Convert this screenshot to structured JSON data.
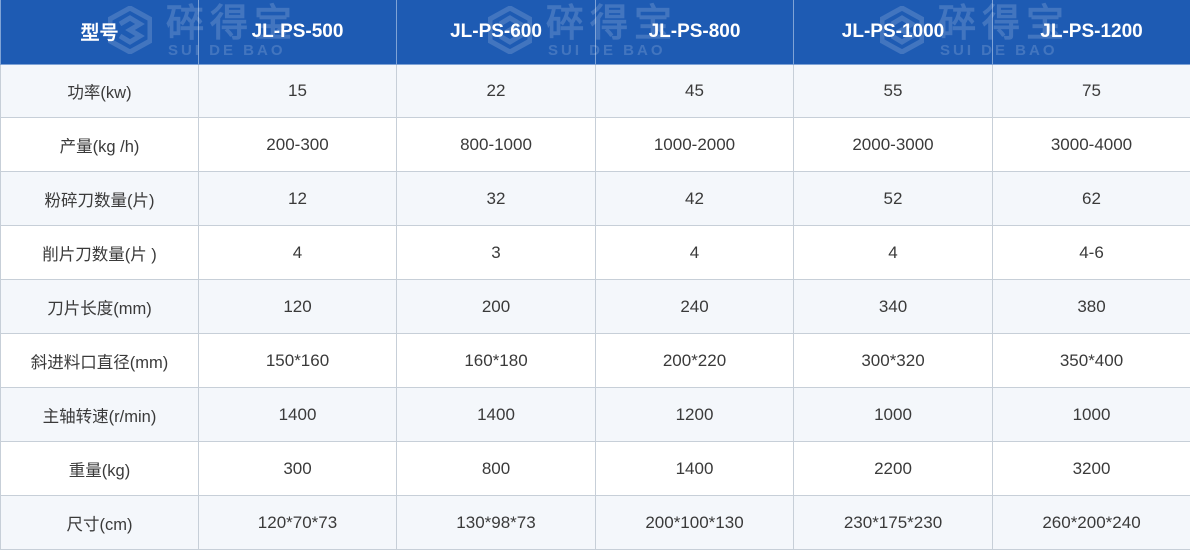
{
  "watermark": {
    "cn": "碎得宝",
    "en": "SUI DE BAO"
  },
  "table": {
    "header": [
      "型号",
      "JL-PS-500",
      "JL-PS-600",
      "JL-PS-800",
      "JL-PS-1000",
      "JL-PS-1200"
    ],
    "rows": [
      [
        "功率(kw)",
        "15",
        "22",
        "45",
        "55",
        "75"
      ],
      [
        "产量(kg /h)",
        "200-300",
        "800-1000",
        "1000-2000",
        "2000-3000",
        "3000-4000"
      ],
      [
        "粉碎刀数量(片)",
        "12",
        "32",
        "42",
        "52",
        "62"
      ],
      [
        "削片刀数量(片 )",
        "4",
        "3",
        "4",
        "4",
        "4-6"
      ],
      [
        "刀片长度(mm)",
        "120",
        "200",
        "240",
        "340",
        "380"
      ],
      [
        "斜进料口直径(mm)",
        "150*160",
        "160*180",
        "200*220",
        "300*320",
        "350*400"
      ],
      [
        "主轴转速(r/min)",
        "1400",
        "1400",
        "1200",
        "1000",
        "1000"
      ],
      [
        "重量(kg)",
        "300",
        "800",
        "1400",
        "2200",
        "3200"
      ],
      [
        "尺寸(cm)",
        "120*70*73",
        "130*98*73",
        "200*100*130",
        "230*175*230",
        "260*200*240"
      ]
    ]
  }
}
